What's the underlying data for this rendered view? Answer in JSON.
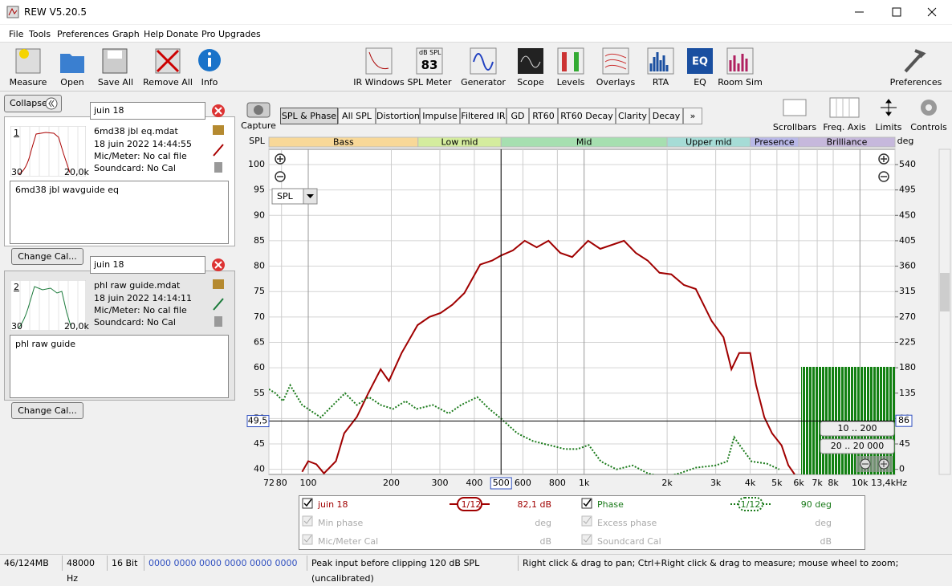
{
  "window": {
    "title": "REW V5.20.5"
  },
  "menu": [
    "File",
    "Tools",
    "Preferences",
    "Graph",
    "Help",
    "Donate",
    "Pro Upgrades"
  ],
  "toolbar_left": [
    "Measure",
    "Open",
    "Save All",
    "Remove All",
    "Info"
  ],
  "toolbar_center": [
    "IR Windows",
    "SPL Meter",
    "Generator",
    "Scope",
    "Levels",
    "Overlays",
    "RTA",
    "EQ",
    "Room Sim"
  ],
  "spl_meter_icon": {
    "unit": "dB SPL",
    "reading": "83"
  },
  "toolbar_right": "Preferences",
  "collapse": "Collapse",
  "measurements": [
    {
      "search": "juin 18",
      "index": "1",
      "thumb_min": "30",
      "thumb_max": "20,0k",
      "file": "6md38 jbl eq.mdat",
      "date": "18 juin 2022 14:44:55",
      "mic": "Mic/Meter: No cal file",
      "soundcard": "Soundcard: No Cal",
      "notes": "6md38 jbl wavguide eq",
      "button": "Change Cal..."
    },
    {
      "search": "juin 18",
      "index": "2",
      "thumb_min": "30",
      "thumb_max": "20,0k",
      "file": "phl raw guide.mdat",
      "date": "18 juin 2022 14:14:11",
      "mic": "Mic/Meter: No cal file",
      "soundcard": "Soundcard: No Cal",
      "notes": "phl raw guide",
      "button": "Change Cal..."
    }
  ],
  "capture": "Capture",
  "tabs": [
    "SPL & Phase",
    "All SPL",
    "Distortion",
    "Impulse",
    "Filtered IR",
    "GD",
    "RT60",
    "RT60 Decay",
    "Clarity",
    "Decay",
    "»"
  ],
  "graph_tools": [
    "Scrollbars",
    "Freq. Axis",
    "Limits",
    "Controls"
  ],
  "chart_data": {
    "type": "line",
    "xscale": "log",
    "ylabel": "SPL",
    "y2label": "deg",
    "grid": true,
    "xlim": [
      72,
      13400
    ],
    "ylim": [
      39,
      103
    ],
    "y2lim": [
      -9,
      567
    ],
    "xticks": [
      72,
      80,
      100,
      200,
      300,
      400,
      500,
      600,
      800,
      {
        "value": 1000,
        "label": "1k"
      },
      {
        "value": 2000,
        "label": "2k"
      },
      {
        "value": 3000,
        "label": "3k"
      },
      {
        "value": 4000,
        "label": "4k"
      },
      {
        "value": 5000,
        "label": "5k"
      },
      {
        "value": 6000,
        "label": "6k"
      },
      {
        "value": 7000,
        "label": "7k"
      },
      {
        "value": 8000,
        "label": "8k"
      },
      {
        "value": 10000,
        "label": "10k"
      },
      {
        "value": 13400,
        "label": "13,4kHz"
      }
    ],
    "yticks": [
      40,
      45,
      50,
      55,
      60,
      65,
      70,
      75,
      80,
      85,
      90,
      95,
      100
    ],
    "y2ticks": [
      0,
      45,
      90,
      135,
      180,
      225,
      270,
      315,
      360,
      405,
      450,
      495,
      540
    ],
    "bands": [
      {
        "name": "Bass",
        "from": 72,
        "to": 250,
        "color": "#f8d898"
      },
      {
        "name": "Low mid",
        "from": 250,
        "to": 500,
        "color": "#d4ec9e"
      },
      {
        "name": "Mid",
        "from": 500,
        "to": 2000,
        "color": "#a6dfb0"
      },
      {
        "name": "Upper mid",
        "from": 2000,
        "to": 4000,
        "color": "#a6dcd6"
      },
      {
        "name": "Presence",
        "from": 4000,
        "to": 6000,
        "color": "#b9b8e8"
      },
      {
        "name": "Brilliance",
        "from": 6000,
        "to": 13400,
        "color": "#c6b8dc"
      }
    ],
    "series": [
      {
        "name": "juin 18",
        "color": "#a00000",
        "dash": false,
        "axis": "y",
        "x": [
          95,
          100,
          107,
          114,
          126,
          135,
          150,
          165,
          183,
          196,
          218,
          249,
          275,
          302,
          333,
          368,
          420,
          464,
          500,
          552,
          609,
          673,
          743,
          820,
          905,
          1034,
          1144,
          1263,
          1395,
          1540,
          1700,
          1877,
          2070,
          2300,
          2540,
          2900,
          3200,
          3420,
          3650,
          4000,
          4200,
          4500,
          4800,
          5200,
          5500,
          5800
        ],
        "values": [
          39.5,
          41.6,
          41,
          39.2,
          41.6,
          47.1,
          50.3,
          55,
          59.7,
          57.4,
          62.9,
          68.4,
          70,
          70.8,
          72.4,
          74.7,
          80.3,
          81.1,
          82.1,
          83.1,
          85,
          83.7,
          85,
          82.6,
          81.8,
          85,
          83.4,
          84.2,
          85,
          82.6,
          81.1,
          78.7,
          78.4,
          76.3,
          75.5,
          69.2,
          66,
          59.7,
          62.9,
          62.9,
          56.6,
          50.3,
          47.1,
          44.7,
          40.8,
          39
        ]
      },
      {
        "name": "Phase",
        "color": "#1a7a1a",
        "dash": true,
        "axis": "y2",
        "x": [
          72,
          76,
          81,
          86,
          95,
          111,
          123,
          136,
          150,
          166,
          183,
          203,
          225,
          247,
          283,
          323,
          358,
          410,
          453,
          500,
          572,
          653,
          745,
          852,
          946,
          1040,
          1150,
          1310,
          1500,
          1700,
          1950,
          2220,
          2540,
          3000,
          3300,
          3500,
          3660,
          4050,
          4600,
          5100
        ],
        "values": [
          142,
          135,
          121,
          149,
          114,
          92,
          114,
          135,
          114,
          128,
          114,
          107,
          121,
          107,
          114,
          99,
          114,
          128,
          107,
          90,
          64,
          50,
          43,
          36,
          36,
          43,
          14,
          0,
          7,
          -7,
          -14,
          -7,
          3,
          7,
          14,
          57,
          43,
          14,
          10,
          0
        ]
      }
    ],
    "cursor": {
      "x": {
        "value": 500,
        "label": "500"
      },
      "y": {
        "value": 49.5,
        "label": "49,5"
      },
      "y2": {
        "value": 86,
        "label": "86"
      }
    },
    "dropdown": "SPL",
    "ranges": [
      "10 .. 200",
      "20 .. 20 000"
    ]
  },
  "legend_panel": {
    "spl_smoothing": "1/12",
    "spl_value": "82,1 dB",
    "phase_smoothing": "1/12",
    "phase_value": "90 deg",
    "rows": [
      {
        "name": "Min phase",
        "unit": "deg"
      },
      {
        "name": "Excess phase",
        "unit": "deg"
      },
      {
        "name": "Mic/Meter Cal",
        "unit": "dB"
      },
      {
        "name": "Soundcard Cal",
        "unit": "dB"
      }
    ]
  },
  "status": [
    "46/124MB",
    "48000 Hz",
    "16 Bit",
    "0000 0000  0000 0000  0000 0000",
    "Peak input before clipping 120 dB SPL (uncalibrated)",
    "Right click & drag to pan; Ctrl+Right click & drag to measure; mouse wheel to zoom;"
  ]
}
